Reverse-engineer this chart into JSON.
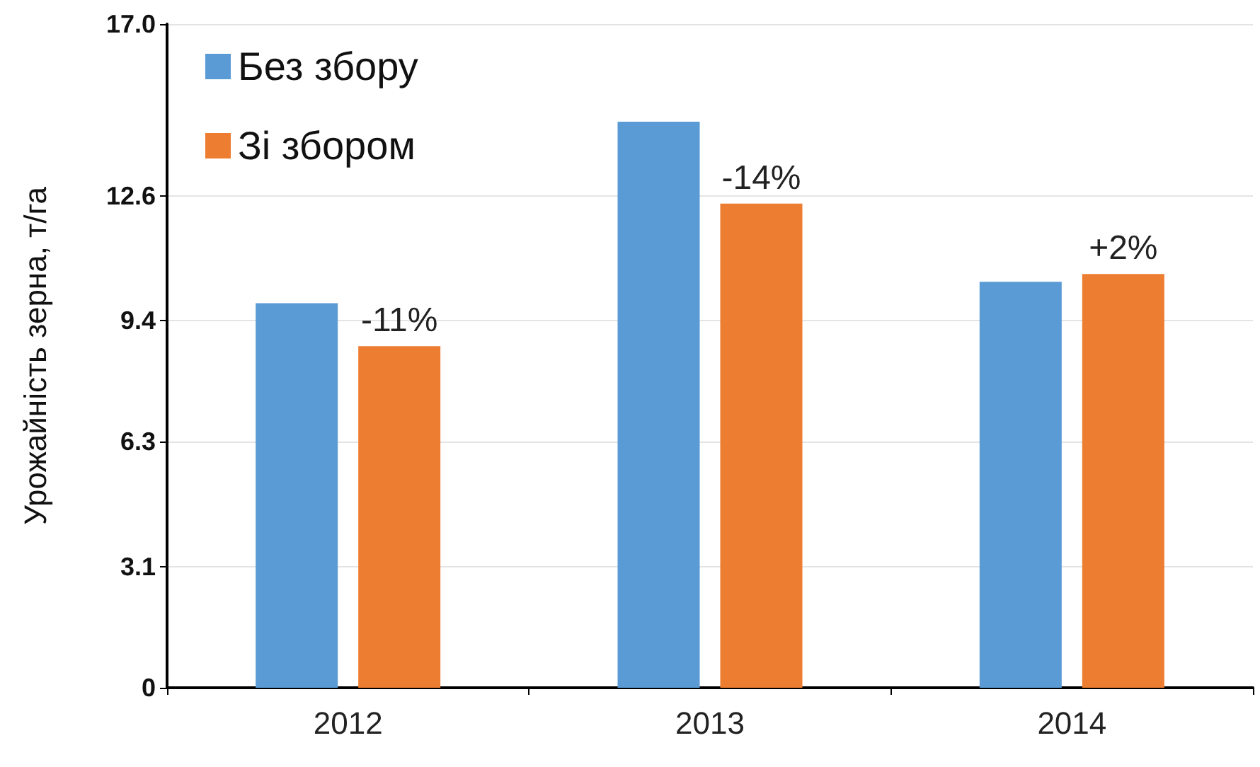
{
  "chart_data": {
    "type": "bar",
    "ylabel": "Урожайність зерна, т/га",
    "categories": [
      "2012",
      "2013",
      "2014"
    ],
    "series": [
      {
        "name": "Без збору",
        "color": "#5b9bd5",
        "values": [
          9.85,
          14.5,
          10.4
        ]
      },
      {
        "name": "Зі збором",
        "color": "#ed7d31",
        "values": [
          8.75,
          12.4,
          10.6
        ]
      }
    ],
    "annotations": [
      "-11%",
      "-14%",
      "+2%"
    ],
    "ylim": [
      0,
      17
    ],
    "yticks": [
      0,
      3.1,
      6.3,
      9.4,
      12.6,
      {
        "value": 17,
        "label": "17.0"
      }
    ],
    "grid": "y",
    "legend": "top left"
  }
}
